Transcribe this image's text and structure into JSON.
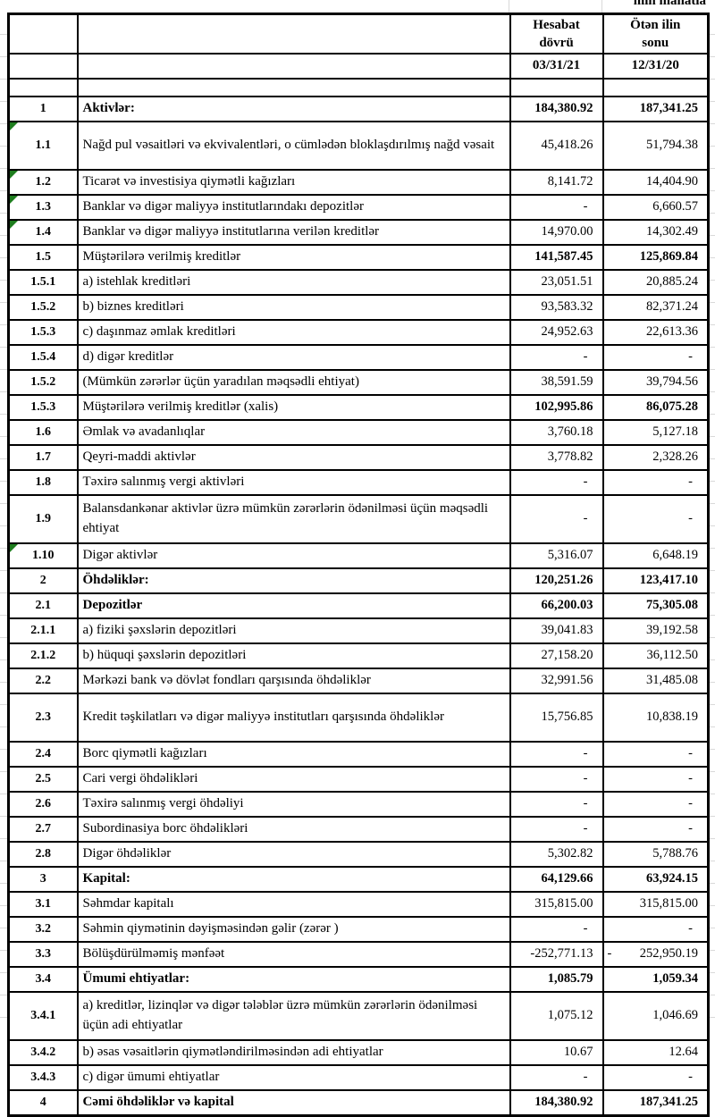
{
  "page": {
    "unit_note": "min manatla"
  },
  "colors": {
    "border": "#000000",
    "error_flag_green": "#1e7d1e",
    "gridline": "#d9d9d9",
    "text": "#000000"
  },
  "table": {
    "headers": {
      "col_period": "Hesabat dövrü",
      "col_prev": "Ötən ilin sonu",
      "date_period": "03/31/21",
      "date_prev": "12/31/20"
    },
    "rows": [
      {
        "num": "1",
        "label": "Aktivlər:",
        "v1": "184,380.92",
        "v2": "187,341.25",
        "h": 1,
        "flag": false,
        "boldLabel": true,
        "boldVals": true
      },
      {
        "num": "1.1",
        "label": "Nağd pul vəsaitləri və  ekvivalentləri, o cümlədən bloklaşdırılmış nağd vəsait",
        "v1": "45,418.26",
        "v2": "51,794.38",
        "h": 2,
        "flag": true,
        "boldLabel": false,
        "boldVals": false
      },
      {
        "num": "1.2",
        "label": "Ticarət və investisiya qiymətli kağızları",
        "v1": "8,141.72",
        "v2": "14,404.90",
        "h": 1,
        "flag": true,
        "boldLabel": false,
        "boldVals": false
      },
      {
        "num": "1.3",
        "label": "Banklar və digər maliyyə institutlarındakı depozitlər",
        "v1": "-",
        "v2": "6,660.57",
        "h": 1,
        "flag": true,
        "boldLabel": false,
        "boldVals": false
      },
      {
        "num": "1.4",
        "label": "Banklar və digər maliyyə institutlarına verilən kreditlər",
        "v1": "14,970.00",
        "v2": "14,302.49",
        "h": 1,
        "flag": true,
        "boldLabel": false,
        "boldVals": false
      },
      {
        "num": "1.5",
        "label": "Müştərilərə verilmiş kreditlər",
        "v1": "141,587.45",
        "v2": "125,869.84",
        "h": 1,
        "flag": false,
        "boldLabel": false,
        "boldVals": true
      },
      {
        "num": "1.5.1",
        "label": "a) istehlak kreditləri",
        "v1": "23,051.51",
        "v2": "20,885.24",
        "h": 1,
        "flag": false,
        "boldLabel": false,
        "boldVals": false
      },
      {
        "num": "1.5.2",
        "label": "b) biznes kreditləri",
        "v1": "93,583.32",
        "v2": "82,371.24",
        "h": 1,
        "flag": false,
        "boldLabel": false,
        "boldVals": false
      },
      {
        "num": "1.5.3",
        "label": "c) daşınmaz əmlak kreditləri",
        "v1": "24,952.63",
        "v2": "22,613.36",
        "h": 1,
        "flag": false,
        "boldLabel": false,
        "boldVals": false
      },
      {
        "num": "1.5.4",
        "label": "d) digər kreditlər",
        "v1": "-",
        "v2": "-",
        "h": 1,
        "flag": false,
        "boldLabel": false,
        "boldVals": false
      },
      {
        "num": "1.5.2",
        "label": "(Mümkün zərərlər üçün yaradılan məqsədli ehtiyat)",
        "v1": "38,591.59",
        "v2": "39,794.56",
        "h": 1,
        "flag": false,
        "boldLabel": false,
        "boldVals": false
      },
      {
        "num": "1.5.3",
        "label": "Müştərilərə verilmiş kreditlər (xalis)",
        "v1": "102,995.86",
        "v2": "86,075.28",
        "h": 1,
        "flag": false,
        "boldLabel": false,
        "boldVals": true
      },
      {
        "num": "1.6",
        "label": "Əmlak və avadanlıqlar",
        "v1": "3,760.18",
        "v2": "5,127.18",
        "h": 1,
        "flag": false,
        "boldLabel": false,
        "boldVals": false
      },
      {
        "num": "1.7",
        "label": "Qeyri-maddi aktivlər",
        "v1": "3,778.82",
        "v2": "2,328.26",
        "h": 1,
        "flag": false,
        "boldLabel": false,
        "boldVals": false
      },
      {
        "num": "1.8",
        "label": "Təxirə salınmış vergi aktivləri",
        "v1": "-",
        "v2": "-",
        "h": 1,
        "flag": false,
        "boldLabel": false,
        "boldVals": false
      },
      {
        "num": "1.9",
        "label": "Balansdankənar aktivlər üzrə mümkün zərərlərin ödənilməsi üçün məqsədli ehtiyat",
        "v1": "-",
        "v2": "-",
        "h": 2,
        "flag": false,
        "boldLabel": false,
        "boldVals": false
      },
      {
        "num": "1.10",
        "label": "Digər aktivlər",
        "v1": "5,316.07",
        "v2": "6,648.19",
        "h": 1,
        "flag": true,
        "boldLabel": false,
        "boldVals": false
      },
      {
        "num": "2",
        "label": "Öhdəliklər:",
        "v1": "120,251.26",
        "v2": "123,417.10",
        "h": 1,
        "flag": false,
        "boldLabel": true,
        "boldVals": true
      },
      {
        "num": "2.1",
        "label": "Depozitlər",
        "v1": "66,200.03",
        "v2": "75,305.08",
        "h": 1,
        "flag": false,
        "boldLabel": true,
        "boldVals": true
      },
      {
        "num": "2.1.1",
        "label": "a) fiziki şəxslərin depozitləri",
        "v1": "39,041.83",
        "v2": "39,192.58",
        "h": 1,
        "flag": false,
        "boldLabel": false,
        "boldVals": false
      },
      {
        "num": "2.1.2",
        "label": "b) hüquqi şəxslərin depozitləri",
        "v1": "27,158.20",
        "v2": "36,112.50",
        "h": 1,
        "flag": false,
        "boldLabel": false,
        "boldVals": false
      },
      {
        "num": "2.2",
        "label": "Mərkəzi bank və dövlət fondları qarşısında öhdəliklər",
        "v1": "32,991.56",
        "v2": "31,485.08",
        "h": 1,
        "flag": false,
        "boldLabel": false,
        "boldVals": false
      },
      {
        "num": "2.3",
        "label": "Kredit təşkilatları və digər maliyyə institutları qarşısında öhdəliklər",
        "v1": "15,756.85",
        "v2": "10,838.19",
        "h": 2,
        "flag": false,
        "boldLabel": false,
        "boldVals": false
      },
      {
        "num": "2.4",
        "label": "Borc qiymətli kağızları",
        "v1": "-",
        "v2": "-",
        "h": 1,
        "flag": false,
        "boldLabel": false,
        "boldVals": false
      },
      {
        "num": "2.5",
        "label": "Cari vergi öhdəlikləri",
        "v1": "-",
        "v2": "-",
        "h": 1,
        "flag": false,
        "boldLabel": false,
        "boldVals": false
      },
      {
        "num": "2.6",
        "label": "Təxirə salınmış vergi öhdəliyi",
        "v1": "-",
        "v2": "-",
        "h": 1,
        "flag": false,
        "boldLabel": false,
        "boldVals": false
      },
      {
        "num": "2.7",
        "label": "Subordinasiya borc öhdəlikləri",
        "v1": "-",
        "v2": "-",
        "h": 1,
        "flag": false,
        "boldLabel": false,
        "boldVals": false
      },
      {
        "num": "2.8",
        "label": "Digər öhdəliklər",
        "v1": "5,302.82",
        "v2": "5,788.76",
        "h": 1,
        "flag": false,
        "boldLabel": false,
        "boldVals": false
      },
      {
        "num": "3",
        "label": "Kapital:",
        "v1": "64,129.66",
        "v2": "63,924.15",
        "h": 1,
        "flag": false,
        "boldLabel": true,
        "boldVals": true
      },
      {
        "num": "3.1",
        "label": "Səhmdar kapitalı",
        "v1": "315,815.00",
        "v2": "315,815.00",
        "h": 1,
        "flag": false,
        "boldLabel": false,
        "boldVals": false
      },
      {
        "num": "3.2",
        "label": "Səhmin qiymətinin dəyişməsindən gəlir (zərər )",
        "v1": "-",
        "v2": "-",
        "h": 1,
        "flag": false,
        "boldLabel": false,
        "boldVals": false
      },
      {
        "num": "3.3",
        "label": "Bölüşdürülməmiş mənfəət",
        "v1": "-252,771.13",
        "v2": "- 252,950.19",
        "h": 1,
        "flag": false,
        "boldLabel": false,
        "boldVals": false
      },
      {
        "num": "3.4",
        "label": "Ümumi ehtiyatlar:",
        "v1": "1,085.79",
        "v2": "1,059.34",
        "h": 1,
        "flag": false,
        "boldLabel": true,
        "boldVals": true
      },
      {
        "num": "3.4.1",
        "label": "a) kreditlər, lizinqlər və digər tələblər üzrə mümkün zərərlərin ödənilməsi üçün adi ehtiyatlar",
        "v1": "1,075.12",
        "v2": "1,046.69",
        "h": 2,
        "flag": false,
        "boldLabel": false,
        "boldVals": false
      },
      {
        "num": "3.4.2",
        "label": "b) əsas vəsaitlərin qiymətləndirilməsindən adi ehtiyatlar",
        "v1": "10.67",
        "v2": "12.64",
        "h": 1,
        "flag": false,
        "boldLabel": false,
        "boldVals": false
      },
      {
        "num": "3.4.3",
        "label": "c) digər ümumi ehtiyatlar",
        "v1": "-",
        "v2": "-",
        "h": 1,
        "flag": false,
        "boldLabel": false,
        "boldVals": false
      },
      {
        "num": "4",
        "label": "Cəmi öhdəliklər və kapital",
        "v1": "184,380.92",
        "v2": "187,341.25",
        "h": 1,
        "flag": false,
        "boldLabel": true,
        "boldVals": true
      }
    ]
  }
}
